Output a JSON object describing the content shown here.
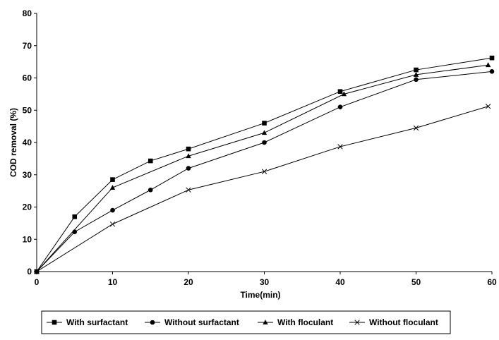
{
  "chart_data": {
    "type": "line",
    "title": "",
    "xlabel": "Time(min)",
    "ylabel": "COD removal (%)",
    "xlim": [
      0,
      60
    ],
    "ylim": [
      0,
      80
    ],
    "xticks": [
      0,
      10,
      20,
      30,
      40,
      50,
      60
    ],
    "yticks": [
      0,
      10,
      20,
      30,
      40,
      50,
      60,
      70,
      80
    ],
    "grid": false,
    "legend_position": "bottom",
    "series": [
      {
        "name": "With surfactant",
        "marker": "square",
        "color": "#000000",
        "x": [
          0,
          5,
          10,
          15,
          20,
          30,
          40,
          50,
          60
        ],
        "y": [
          0,
          17,
          28.5,
          34.3,
          38,
          46,
          55.8,
          62.5,
          66.2
        ]
      },
      {
        "name": "Without surfactant",
        "marker": "circle",
        "color": "#000000",
        "x": [
          0,
          5,
          10,
          15,
          20,
          30,
          40,
          50,
          60
        ],
        "y": [
          0,
          12.3,
          19,
          25.3,
          32,
          40,
          51,
          59.5,
          62
        ]
      },
      {
        "name": "With floculant",
        "marker": "triangle",
        "color": "#000000",
        "x": [
          0,
          10,
          20,
          30,
          40.5,
          50,
          59.5
        ],
        "y": [
          0,
          26,
          35.8,
          43,
          55,
          61,
          64
        ]
      },
      {
        "name": "Without floculant",
        "marker": "x",
        "color": "#000000",
        "x": [
          0,
          10,
          20,
          30,
          40,
          50,
          59.5
        ],
        "y": [
          0,
          14.7,
          25.3,
          31,
          38.7,
          44.5,
          51.2
        ]
      }
    ]
  }
}
